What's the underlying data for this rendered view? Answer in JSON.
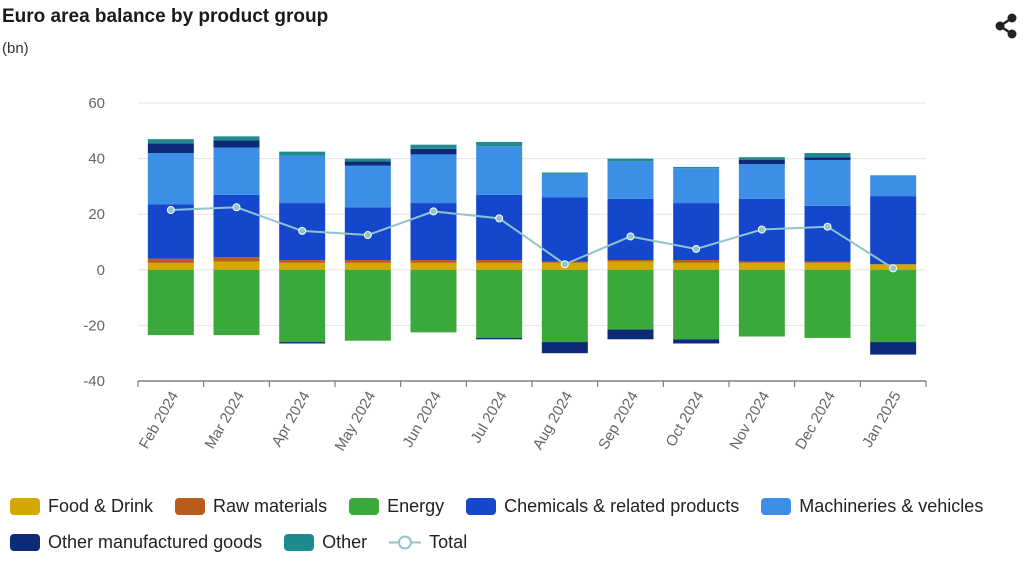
{
  "header": {
    "title": "Euro area balance by product group",
    "subtitle": "(bn)",
    "share_icon": "share-icon"
  },
  "chart_data": {
    "type": "bar",
    "stacked": true,
    "title": "Euro area balance by product group",
    "ylabel": "(bn)",
    "xlabel": "",
    "ylim": [
      -40,
      60
    ],
    "yticks": [
      60,
      40,
      20,
      0,
      -20,
      -40
    ],
    "grid": true,
    "legend_position": "bottom",
    "categories": [
      "Feb 2024",
      "Mar 2024",
      "Apr 2024",
      "May 2024",
      "Jun 2024",
      "Jul 2024",
      "Aug 2024",
      "Sep 2024",
      "Oct 2024",
      "Nov 2024",
      "Dec 2024",
      "Jan 2025"
    ],
    "series": [
      {
        "name": "Food & Drink",
        "color": "#d4a800",
        "values": [
          2.5,
          3.0,
          2.5,
          2.5,
          2.5,
          2.5,
          2.5,
          3.0,
          2.5,
          2.5,
          2.5,
          2.0
        ]
      },
      {
        "name": "Raw materials",
        "color": "#b85c1a",
        "values": [
          1.5,
          1.5,
          1.0,
          1.0,
          1.0,
          1.0,
          0.5,
          0.5,
          1.0,
          0.5,
          0.5,
          0.0
        ]
      },
      {
        "name": "Energy",
        "color": "#3aa83a",
        "values": [
          -23.5,
          -23.5,
          -26.0,
          -25.5,
          -22.5,
          -24.5,
          -26.0,
          -21.5,
          -25.0,
          -24.0,
          -24.5,
          -26.0
        ]
      },
      {
        "name": "Chemicals & related products",
        "color": "#1447cc",
        "values": [
          19.5,
          22.5,
          20.5,
          19.0,
          20.5,
          23.5,
          23.0,
          22.0,
          20.5,
          22.5,
          20.0,
          24.5
        ]
      },
      {
        "name": "Machineries & vehicles",
        "color": "#3d8ee6",
        "values": [
          18.5,
          17.0,
          17.0,
          15.0,
          17.5,
          17.5,
          8.5,
          13.5,
          12.5,
          12.5,
          16.5,
          7.5
        ]
      },
      {
        "name": "Other manufactured goods",
        "color": "#0d2a78",
        "values": [
          3.5,
          2.5,
          -0.5,
          1.5,
          2.0,
          -0.5,
          -4.0,
          -3.5,
          -1.5,
          1.5,
          1.0,
          -4.5
        ]
      },
      {
        "name": "Other",
        "color": "#1e8c8c",
        "values": [
          1.5,
          1.5,
          1.5,
          1.0,
          1.5,
          1.5,
          0.5,
          1.0,
          0.5,
          1.0,
          1.5,
          0.0
        ]
      }
    ],
    "total": {
      "name": "Total",
      "color": "#8fc4cc",
      "values": [
        21.5,
        22.5,
        14.0,
        12.5,
        21.0,
        18.5,
        2.0,
        12.0,
        7.5,
        14.5,
        15.5,
        0.5
      ]
    }
  },
  "legend": {
    "rows": [
      [
        {
          "label": "Food & Drink",
          "color": "#d4a800"
        },
        {
          "label": "Raw materials",
          "color": "#b85c1a"
        },
        {
          "label": "Energy",
          "color": "#3aa83a"
        },
        {
          "label": "Chemicals & related products",
          "color": "#1447cc"
        },
        {
          "label": "Machineries & vehicles",
          "color": "#3d8ee6"
        }
      ],
      [
        {
          "label": "Other manufactured goods",
          "color": "#0d2a78"
        },
        {
          "label": "Other",
          "color": "#1e8c8c"
        },
        {
          "label": "Total",
          "color": "#8fc4cc",
          "line": true
        }
      ]
    ]
  }
}
